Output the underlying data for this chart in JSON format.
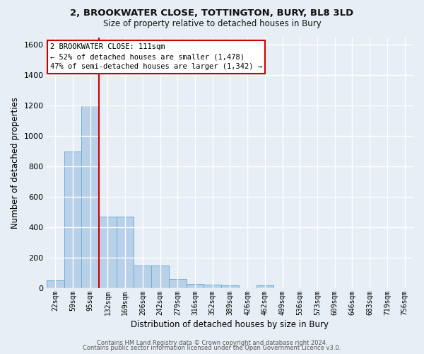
{
  "title1": "2, BROOKWATER CLOSE, TOTTINGTON, BURY, BL8 3LD",
  "title2": "Size of property relative to detached houses in Bury",
  "xlabel": "Distribution of detached houses by size in Bury",
  "ylabel": "Number of detached properties",
  "bin_labels": [
    "22sqm",
    "59sqm",
    "95sqm",
    "132sqm",
    "169sqm",
    "206sqm",
    "242sqm",
    "279sqm",
    "316sqm",
    "352sqm",
    "389sqm",
    "426sqm",
    "462sqm",
    "499sqm",
    "536sqm",
    "573sqm",
    "609sqm",
    "646sqm",
    "683sqm",
    "719sqm",
    "756sqm"
  ],
  "bar_heights": [
    50,
    900,
    1200,
    470,
    470,
    150,
    150,
    60,
    30,
    25,
    20,
    0,
    20,
    0,
    0,
    0,
    0,
    0,
    0,
    0,
    0
  ],
  "bar_color": "#b8d0e8",
  "bar_edge_color": "#6baed6",
  "ylim": [
    0,
    1650
  ],
  "yticks": [
    0,
    200,
    400,
    600,
    800,
    1000,
    1200,
    1400,
    1600
  ],
  "property_line_x": 2.5,
  "property_line_color": "#cc0000",
  "annotation_text_line1": "2 BROOKWATER CLOSE: 111sqm",
  "annotation_text_line2": "← 52% of detached houses are smaller (1,478)",
  "annotation_text_line3": "47% of semi-detached houses are larger (1,342) →",
  "footer1": "Contains HM Land Registry data © Crown copyright and database right 2024.",
  "footer2": "Contains public sector information licensed under the Open Government Licence v3.0.",
  "bg_color": "#e8eef5",
  "plot_bg_color": "#e8eef5",
  "grid_color": "#ffffff"
}
